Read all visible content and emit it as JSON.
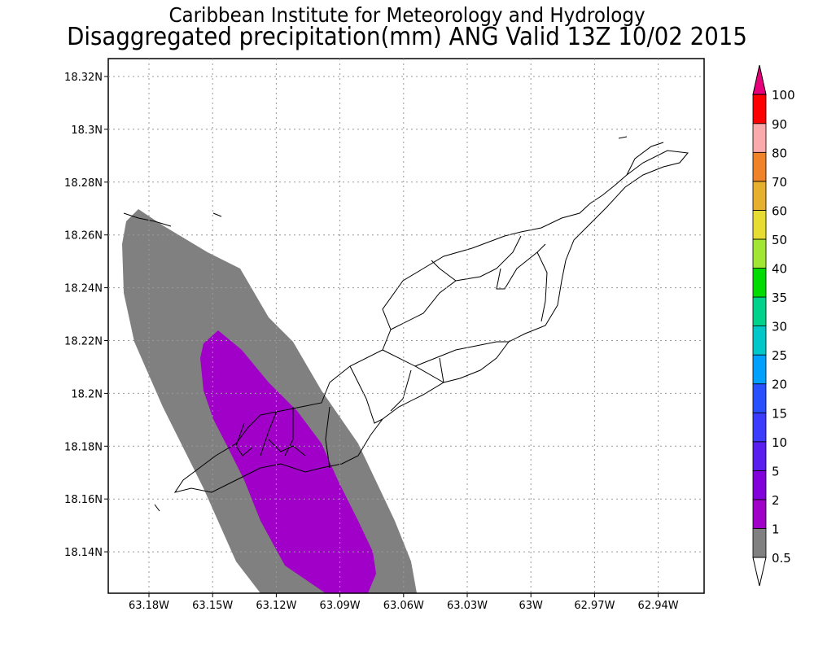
{
  "title_line1": "Caribbean Institute for Meteorology and Hydrology",
  "title_line2": "Disaggregated precipitation(mm) ANG Valid 13Z 10/02 2015",
  "axes": {
    "y_labels": [
      "18.32N",
      "18.3N",
      "18.28N",
      "18.26N",
      "18.24N",
      "18.22N",
      "18.2N",
      "18.18N",
      "18.16N",
      "18.14N"
    ],
    "x_labels": [
      "63.18W",
      "63.15W",
      "63.12W",
      "63.09W",
      "63.06W",
      "63.03W",
      "63W",
      "62.97W",
      "62.94W"
    ],
    "grid": "dotted"
  },
  "precip_areas": [
    {
      "name": "0.5-1 mm",
      "color": "#808080"
    },
    {
      "name": "1-2 mm",
      "color": "#a000c8"
    }
  ],
  "colorbar": {
    "levels": [
      {
        "label": "0.5",
        "color": "#808080"
      },
      {
        "label": "1",
        "color": "#a000c8"
      },
      {
        "label": "2",
        "color": "#8200dc"
      },
      {
        "label": "5",
        "color": "#5a1ef0"
      },
      {
        "label": "10",
        "color": "#3c3cff"
      },
      {
        "label": "15",
        "color": "#2850ff"
      },
      {
        "label": "20",
        "color": "#00a0ff"
      },
      {
        "label": "25",
        "color": "#00c8c8"
      },
      {
        "label": "30",
        "color": "#00d28c"
      },
      {
        "label": "35",
        "color": "#00dc00"
      },
      {
        "label": "40",
        "color": "#a0e632"
      },
      {
        "label": "50",
        "color": "#e6dc32"
      },
      {
        "label": "60",
        "color": "#e6af2d"
      },
      {
        "label": "70",
        "color": "#f08228"
      },
      {
        "label": "80",
        "color": "#faaaaa"
      },
      {
        "label": "90",
        "color": "#ff0000"
      },
      {
        "label": "100",
        "color": "#f03c3c"
      }
    ],
    "top_arrow_color": "#e6007a",
    "bottom_arrow_color": "#ffffff"
  }
}
